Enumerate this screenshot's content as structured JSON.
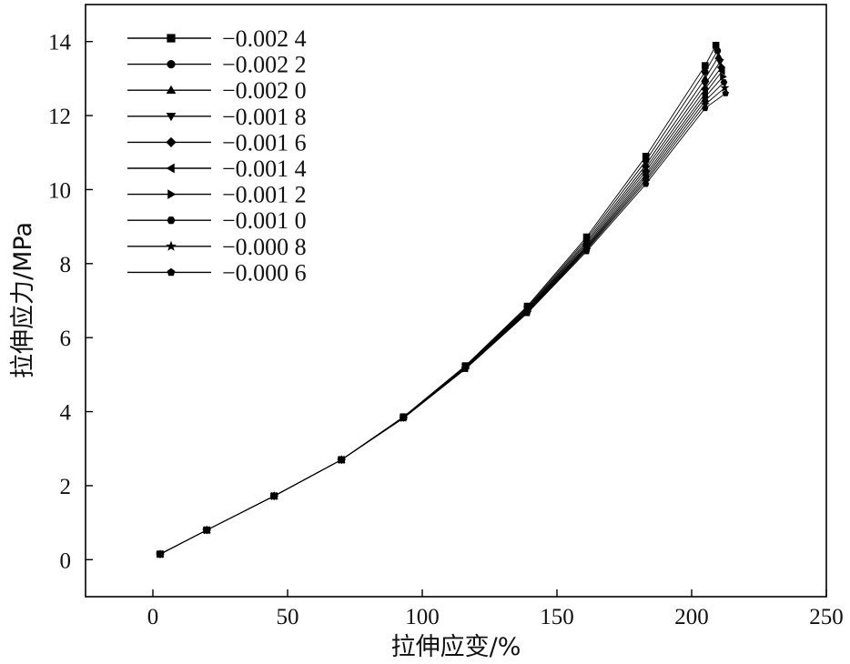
{
  "chart_data": {
    "type": "line",
    "xlabel": "拉伸应变/%",
    "ylabel": "拉伸应力/MPa",
    "xlim": [
      -25,
      250
    ],
    "ylim": [
      -1,
      15
    ],
    "xticks": [
      0,
      50,
      100,
      150,
      200,
      250
    ],
    "yticks": [
      0,
      2,
      4,
      6,
      8,
      10,
      12,
      14
    ],
    "grid": false,
    "legend_position": "top-left",
    "x": [
      2.7,
      20,
      45,
      70,
      93,
      116,
      139,
      161,
      183,
      205
    ],
    "series": [
      {
        "name": "−0.002 4",
        "marker": "square",
        "x": [
          2.7,
          20,
          45,
          70,
          93,
          116,
          139,
          161,
          183,
          205
        ],
        "y": [
          0.15,
          0.8,
          1.72,
          2.7,
          3.86,
          5.24,
          6.85,
          8.72,
          10.9,
          13.35
        ]
      },
      {
        "name": "−0.002 2",
        "marker": "circle",
        "x": [
          2.7,
          20,
          45,
          70,
          93,
          116,
          139,
          161,
          183,
          205
        ],
        "y": [
          0.15,
          0.8,
          1.72,
          2.7,
          3.85,
          5.23,
          6.82,
          8.66,
          10.78,
          13.18
        ]
      },
      {
        "name": "−0.002 0",
        "marker": "triangle-up",
        "x": [
          2.7,
          20,
          45,
          70,
          93,
          116,
          139,
          161,
          183,
          205
        ],
        "y": [
          0.15,
          0.8,
          1.72,
          2.7,
          3.85,
          5.22,
          6.79,
          8.6,
          10.67,
          13.0
        ]
      },
      {
        "name": "−0.001 8",
        "marker": "triangle-down",
        "x": [
          2.7,
          20,
          45,
          70,
          93,
          116,
          139,
          161,
          183,
          205
        ],
        "y": [
          0.15,
          0.8,
          1.72,
          2.7,
          3.84,
          5.21,
          6.77,
          8.55,
          10.58,
          12.85
        ]
      },
      {
        "name": "−0.001 6",
        "marker": "diamond",
        "x": [
          2.7,
          20,
          45,
          70,
          93,
          116,
          139,
          161,
          183,
          205
        ],
        "y": [
          0.15,
          0.8,
          1.72,
          2.7,
          3.84,
          5.2,
          6.75,
          8.5,
          10.5,
          12.72
        ]
      },
      {
        "name": "−0.001 4",
        "marker": "triangle-left",
        "x": [
          2.7,
          20,
          45,
          70,
          93,
          116,
          139,
          161,
          183,
          205
        ],
        "y": [
          0.15,
          0.8,
          1.72,
          2.7,
          3.84,
          5.19,
          6.73,
          8.46,
          10.42,
          12.6
        ]
      },
      {
        "name": "−0.001 2",
        "marker": "triangle-right",
        "x": [
          2.7,
          20,
          45,
          70,
          93,
          116,
          139,
          161,
          183,
          205
        ],
        "y": [
          0.15,
          0.8,
          1.72,
          2.7,
          3.83,
          5.18,
          6.71,
          8.43,
          10.35,
          12.5
        ]
      },
      {
        "name": "−0.001 0",
        "marker": "hexagon",
        "x": [
          2.7,
          20,
          45,
          70,
          93,
          116,
          139,
          161,
          183,
          205
        ],
        "y": [
          0.15,
          0.8,
          1.72,
          2.7,
          3.83,
          5.17,
          6.7,
          8.4,
          10.28,
          12.4
        ]
      },
      {
        "name": "−0.000 8",
        "marker": "star",
        "x": [
          2.7,
          20,
          45,
          70,
          93,
          116,
          139,
          161,
          183,
          205
        ],
        "y": [
          0.15,
          0.8,
          1.72,
          2.7,
          3.83,
          5.16,
          6.68,
          8.37,
          10.22,
          12.3
        ]
      },
      {
        "name": "−0.000 6",
        "marker": "pentagon",
        "x": [
          2.7,
          20,
          45,
          70,
          93,
          116,
          139,
          161,
          183,
          205
        ],
        "y": [
          0.15,
          0.8,
          1.72,
          2.7,
          3.82,
          5.15,
          6.66,
          8.33,
          10.15,
          12.2
        ]
      }
    ],
    "end_points": [
      {
        "x": 209,
        "y": 13.9
      },
      {
        "x": 209.6,
        "y": 13.75
      },
      {
        "x": 210,
        "y": 13.6
      },
      {
        "x": 210.5,
        "y": 13.45
      },
      {
        "x": 211,
        "y": 13.3
      },
      {
        "x": 211.3,
        "y": 13.2
      },
      {
        "x": 211.6,
        "y": 13.05
      },
      {
        "x": 212,
        "y": 12.9
      },
      {
        "x": 212.3,
        "y": 12.75
      },
      {
        "x": 212.6,
        "y": 12.6
      }
    ]
  }
}
